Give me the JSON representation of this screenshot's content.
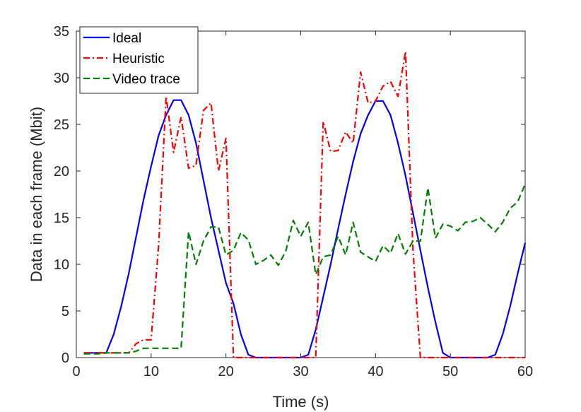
{
  "chart_data": {
    "type": "line",
    "xlabel": "Time (s)",
    "ylabel": "Data in each frame (Mbit)",
    "xlim": [
      0,
      60
    ],
    "ylim": [
      0,
      35
    ],
    "xticks": [
      0,
      10,
      20,
      30,
      40,
      50,
      60
    ],
    "yticks": [
      0,
      5,
      10,
      15,
      20,
      25,
      30,
      35
    ],
    "grid": false,
    "legend_position": "top-left",
    "series": [
      {
        "name": "Ideal",
        "color": "#0000ff",
        "style": "solid",
        "x": [
          1,
          2,
          3,
          4,
          5,
          6,
          7,
          8,
          9,
          10,
          11,
          12,
          13,
          14,
          15,
          16,
          17,
          18,
          19,
          20,
          21,
          22,
          23,
          24,
          25,
          26,
          27,
          28,
          29,
          30,
          31,
          32,
          33,
          34,
          35,
          36,
          37,
          38,
          39,
          40,
          41,
          42,
          43,
          44,
          45,
          46,
          47,
          48,
          49,
          50,
          51,
          52,
          53,
          54,
          55,
          56,
          57,
          58,
          59,
          60
        ],
        "y": [
          0.5,
          0.5,
          0.5,
          0.5,
          2.5,
          5.5,
          9,
          13,
          17,
          20.5,
          23.8,
          26,
          27.6,
          27.6,
          26,
          23,
          19,
          15,
          11.5,
          8,
          5.8,
          2.5,
          0.3,
          0,
          0,
          0,
          0,
          0,
          0,
          0,
          0.3,
          3,
          6.5,
          10,
          13.8,
          17.5,
          21,
          24,
          26,
          27.5,
          27.5,
          26,
          23,
          19.5,
          15.5,
          11.5,
          7.5,
          3.8,
          0.5,
          0,
          0,
          0,
          0,
          0,
          0,
          0.3,
          2.5,
          5.5,
          9,
          12.3
        ]
      },
      {
        "name": "Heuristic",
        "color": "#ff0000",
        "style": "dashdot",
        "x": [
          1,
          2,
          3,
          4,
          5,
          6,
          7,
          8,
          9,
          10,
          11,
          12,
          13,
          14,
          15,
          16,
          17,
          18,
          19,
          20,
          21,
          22,
          23,
          24,
          25,
          26,
          27,
          28,
          29,
          30,
          31,
          32,
          33,
          34,
          35,
          36,
          37,
          38,
          39,
          40,
          41,
          42,
          43,
          44,
          45,
          46,
          47,
          48,
          49,
          50,
          51,
          52,
          53,
          54,
          55,
          56,
          57,
          58,
          59,
          60
        ],
        "y": [
          0.5,
          0.5,
          0.5,
          0.5,
          0.5,
          0.5,
          0.5,
          1.5,
          1.9,
          1.9,
          12,
          28,
          22,
          25.8,
          20.3,
          20.6,
          26.5,
          27.3,
          20,
          23.5,
          0,
          0,
          0,
          0,
          0,
          0,
          0,
          0,
          0,
          0,
          0,
          0,
          25.3,
          22.1,
          22.2,
          24.2,
          23,
          30.6,
          27.3,
          27.5,
          29.1,
          29.6,
          28,
          32.8,
          11.5,
          0,
          0,
          0,
          0,
          0,
          0,
          0,
          0,
          0,
          0,
          0,
          0,
          0,
          0,
          0
        ]
      },
      {
        "name": "Video trace",
        "color": "#008000",
        "style": "dashed",
        "x": [
          1,
          2,
          3,
          4,
          5,
          6,
          7,
          8,
          9,
          10,
          11,
          12,
          13,
          14,
          15,
          16,
          17,
          18,
          19,
          20,
          21,
          22,
          23,
          24,
          25,
          26,
          27,
          28,
          29,
          30,
          31,
          32,
          33,
          34,
          35,
          36,
          37,
          38,
          39,
          40,
          41,
          42,
          43,
          44,
          45,
          46,
          47,
          48,
          49,
          50,
          51,
          52,
          53,
          54,
          55,
          56,
          57,
          58,
          59,
          60
        ],
        "y": [
          0.4,
          0.4,
          0.4,
          0.5,
          0.5,
          0.5,
          0.5,
          0.7,
          1,
          1,
          1,
          1,
          1,
          1,
          13.5,
          10,
          12.5,
          14,
          14,
          11,
          11.5,
          13.4,
          12.6,
          10,
          10.4,
          11,
          9.9,
          11.4,
          14.7,
          13,
          14.5,
          8.9,
          10.8,
          11,
          13,
          11,
          14.5,
          11.3,
          10.8,
          10.3,
          12,
          11.2,
          13.3,
          11.1,
          12.5,
          12.5,
          18.2,
          12.8,
          14.3,
          14.1,
          13.6,
          14.5,
          14.6,
          15,
          14.3,
          13.5,
          14.5,
          16,
          16.7,
          18.6
        ]
      }
    ]
  }
}
